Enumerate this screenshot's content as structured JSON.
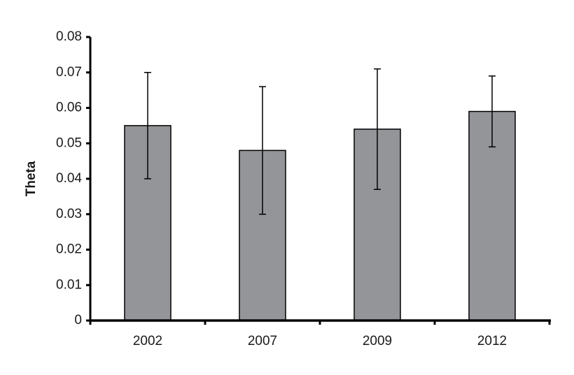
{
  "chart_data": {
    "type": "bar",
    "y_label": "Theta",
    "categories": [
      "2002",
      "2007",
      "2009",
      "2012"
    ],
    "values": [
      0.055,
      0.048,
      0.054,
      0.059
    ],
    "errors": [
      0.015,
      0.018,
      0.017,
      0.01
    ],
    "color": "#939598",
    "ylim": [
      0,
      0.08
    ],
    "yticks": [
      0,
      0.01,
      0.02,
      0.03,
      0.04,
      0.05,
      0.06,
      0.07,
      0.08
    ],
    "grid": false
  }
}
